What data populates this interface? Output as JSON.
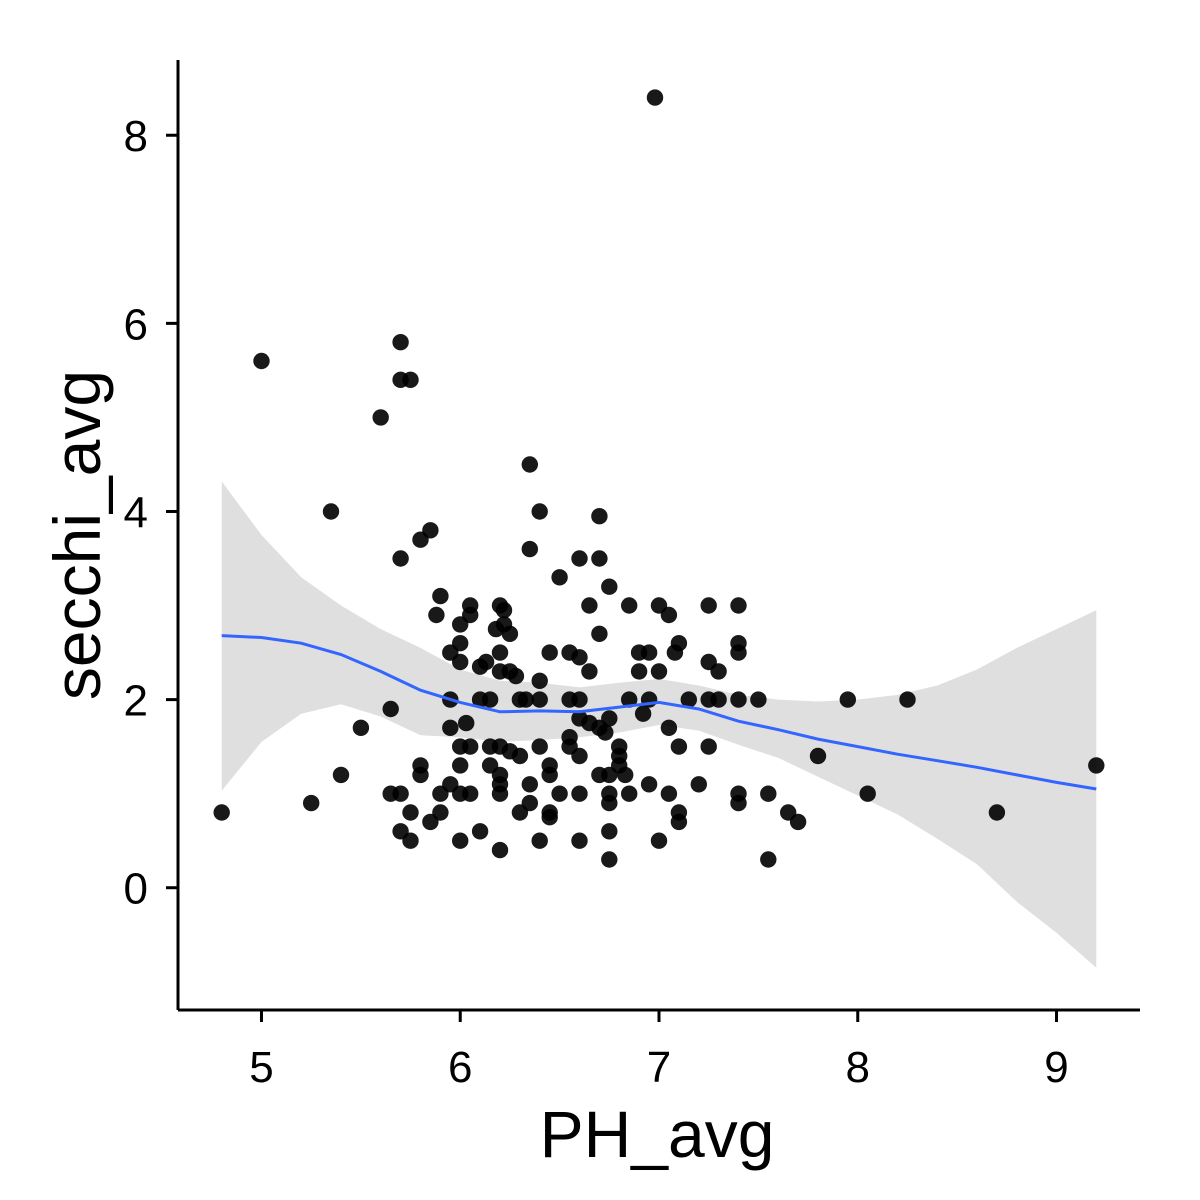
{
  "chart_data": {
    "type": "scatter",
    "title": "",
    "xlabel": "PH_avg",
    "ylabel": "secchi_avg",
    "xlim": [
      4.58,
      9.42
    ],
    "ylim": [
      -1.3,
      8.8
    ],
    "x_ticks": [
      5,
      6,
      7,
      8,
      9
    ],
    "y_ticks": [
      0,
      2,
      4,
      6,
      8
    ],
    "grid": false,
    "legend": "none",
    "point_color": "#000000",
    "smooth_color": "#3366FF",
    "ribbon_color": "#D9D9D9",
    "points": [
      [
        4.8,
        0.8
      ],
      [
        5.0,
        5.6
      ],
      [
        5.25,
        0.9
      ],
      [
        5.35,
        4.0
      ],
      [
        5.4,
        1.2
      ],
      [
        5.5,
        1.7
      ],
      [
        5.6,
        5.0
      ],
      [
        5.65,
        1.9
      ],
      [
        5.65,
        1.0
      ],
      [
        5.7,
        5.8
      ],
      [
        5.7,
        5.4
      ],
      [
        5.75,
        5.4
      ],
      [
        5.7,
        3.5
      ],
      [
        5.7,
        1.0
      ],
      [
        5.7,
        0.6
      ],
      [
        5.75,
        0.8
      ],
      [
        5.75,
        0.5
      ],
      [
        5.8,
        3.7
      ],
      [
        5.85,
        3.8
      ],
      [
        5.8,
        1.3
      ],
      [
        5.8,
        1.2
      ],
      [
        5.85,
        0.7
      ],
      [
        5.9,
        1.0
      ],
      [
        5.9,
        0.8
      ],
      [
        5.88,
        2.9
      ],
      [
        5.9,
        3.1
      ],
      [
        5.95,
        2.5
      ],
      [
        5.95,
        2.0
      ],
      [
        5.95,
        1.7
      ],
      [
        5.95,
        1.1
      ],
      [
        6.0,
        2.6
      ],
      [
        6.0,
        2.8
      ],
      [
        6.0,
        2.4
      ],
      [
        6.0,
        1.5
      ],
      [
        6.0,
        1.3
      ],
      [
        6.0,
        1.0
      ],
      [
        6.0,
        0.5
      ],
      [
        6.03,
        1.75
      ],
      [
        6.05,
        2.9
      ],
      [
        6.05,
        3.0
      ],
      [
        6.05,
        1.5
      ],
      [
        6.05,
        1.0
      ],
      [
        6.1,
        2.35
      ],
      [
        6.1,
        2.0
      ],
      [
        6.1,
        0.6
      ],
      [
        6.13,
        2.4
      ],
      [
        6.15,
        1.5
      ],
      [
        6.15,
        1.3
      ],
      [
        6.15,
        2.0
      ],
      [
        6.18,
        2.75
      ],
      [
        6.2,
        3.0
      ],
      [
        6.2,
        2.5
      ],
      [
        6.2,
        2.3
      ],
      [
        6.2,
        1.5
      ],
      [
        6.2,
        1.2
      ],
      [
        6.2,
        1.1
      ],
      [
        6.2,
        1.0
      ],
      [
        6.2,
        0.4
      ],
      [
        6.22,
        2.95
      ],
      [
        6.22,
        2.8
      ],
      [
        6.25,
        2.7
      ],
      [
        6.25,
        2.3
      ],
      [
        6.25,
        1.45
      ],
      [
        6.28,
        2.25
      ],
      [
        6.3,
        2.0
      ],
      [
        6.3,
        1.4
      ],
      [
        6.3,
        0.8
      ],
      [
        6.33,
        2.0
      ],
      [
        6.35,
        4.5
      ],
      [
        6.35,
        3.6
      ],
      [
        6.35,
        1.1
      ],
      [
        6.35,
        0.9
      ],
      [
        6.4,
        4.0
      ],
      [
        6.4,
        2.2
      ],
      [
        6.4,
        2.0
      ],
      [
        6.4,
        1.5
      ],
      [
        6.4,
        0.5
      ],
      [
        6.45,
        2.5
      ],
      [
        6.45,
        1.3
      ],
      [
        6.45,
        1.2
      ],
      [
        6.45,
        0.8
      ],
      [
        6.45,
        0.75
      ],
      [
        6.5,
        3.3
      ],
      [
        6.5,
        1.0
      ],
      [
        6.55,
        2.5
      ],
      [
        6.55,
        2.0
      ],
      [
        6.55,
        1.6
      ],
      [
        6.55,
        1.5
      ],
      [
        6.6,
        3.5
      ],
      [
        6.6,
        2.45
      ],
      [
        6.6,
        2.0
      ],
      [
        6.6,
        1.8
      ],
      [
        6.6,
        1.4
      ],
      [
        6.6,
        1.0
      ],
      [
        6.6,
        0.5
      ],
      [
        6.65,
        3.0
      ],
      [
        6.65,
        2.3
      ],
      [
        6.65,
        1.75
      ],
      [
        6.7,
        3.95
      ],
      [
        6.7,
        3.5
      ],
      [
        6.7,
        2.7
      ],
      [
        6.7,
        1.7
      ],
      [
        6.7,
        1.2
      ],
      [
        6.73,
        1.65
      ],
      [
        6.75,
        3.2
      ],
      [
        6.75,
        1.8
      ],
      [
        6.75,
        1.2
      ],
      [
        6.75,
        1.0
      ],
      [
        6.75,
        0.9
      ],
      [
        6.75,
        0.6
      ],
      [
        6.75,
        0.3
      ],
      [
        6.8,
        1.5
      ],
      [
        6.8,
        1.4
      ],
      [
        6.8,
        1.3
      ],
      [
        6.83,
        1.2
      ],
      [
        6.85,
        3.0
      ],
      [
        6.85,
        2.0
      ],
      [
        6.85,
        1.0
      ],
      [
        6.9,
        2.5
      ],
      [
        6.9,
        2.3
      ],
      [
        6.92,
        1.85
      ],
      [
        6.95,
        2.5
      ],
      [
        6.95,
        2.0
      ],
      [
        6.95,
        1.1
      ],
      [
        6.98,
        8.4
      ],
      [
        7.0,
        3.0
      ],
      [
        7.0,
        2.3
      ],
      [
        7.0,
        0.5
      ],
      [
        7.05,
        2.9
      ],
      [
        7.05,
        1.7
      ],
      [
        7.05,
        1.0
      ],
      [
        7.08,
        2.5
      ],
      [
        7.1,
        2.6
      ],
      [
        7.1,
        1.5
      ],
      [
        7.1,
        0.8
      ],
      [
        7.1,
        0.7
      ],
      [
        7.15,
        2.0
      ],
      [
        7.2,
        1.1
      ],
      [
        7.25,
        3.0
      ],
      [
        7.25,
        2.4
      ],
      [
        7.25,
        2.0
      ],
      [
        7.25,
        1.5
      ],
      [
        7.3,
        2.3
      ],
      [
        7.3,
        2.0
      ],
      [
        7.4,
        3.0
      ],
      [
        7.4,
        2.6
      ],
      [
        7.4,
        2.5
      ],
      [
        7.4,
        2.0
      ],
      [
        7.4,
        1.0
      ],
      [
        7.4,
        0.9
      ],
      [
        7.5,
        2.0
      ],
      [
        7.55,
        1.0
      ],
      [
        7.55,
        0.3
      ],
      [
        7.65,
        0.8
      ],
      [
        7.7,
        0.7
      ],
      [
        7.8,
        1.4
      ],
      [
        7.95,
        2.0
      ],
      [
        8.05,
        1.0
      ],
      [
        8.25,
        2.0
      ],
      [
        8.7,
        0.8
      ],
      [
        9.2,
        1.3
      ]
    ],
    "smooth": {
      "x": [
        4.8,
        5.0,
        5.2,
        5.4,
        5.6,
        5.8,
        6.0,
        6.2,
        6.4,
        6.6,
        6.8,
        7.0,
        7.2,
        7.4,
        7.6,
        7.8,
        8.0,
        8.2,
        8.4,
        8.6,
        8.8,
        9.0,
        9.2
      ],
      "y": [
        2.68,
        2.66,
        2.6,
        2.48,
        2.3,
        2.1,
        1.97,
        1.87,
        1.88,
        1.87,
        1.92,
        1.97,
        1.9,
        1.77,
        1.68,
        1.58,
        1.5,
        1.42,
        1.35,
        1.28,
        1.2,
        1.12,
        1.05
      ],
      "upper": [
        4.32,
        3.75,
        3.3,
        3.0,
        2.75,
        2.55,
        2.32,
        2.2,
        2.18,
        2.13,
        2.18,
        2.22,
        2.15,
        2.05,
        2.0,
        1.98,
        2.0,
        2.05,
        2.15,
        2.32,
        2.55,
        2.75,
        2.95
      ],
      "lower": [
        1.03,
        1.55,
        1.85,
        1.95,
        1.82,
        1.62,
        1.6,
        1.55,
        1.57,
        1.6,
        1.65,
        1.73,
        1.67,
        1.52,
        1.38,
        1.18,
        0.98,
        0.78,
        0.52,
        0.25,
        -0.15,
        -0.48,
        -0.85
      ]
    }
  }
}
